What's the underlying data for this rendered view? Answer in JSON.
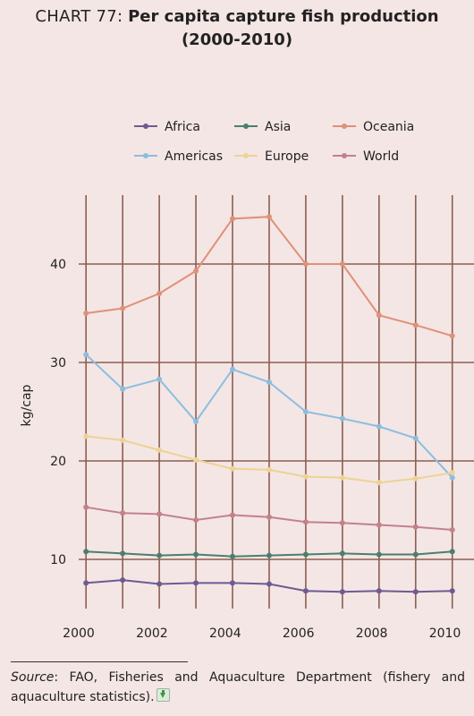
{
  "title_prefix": "CHART 77:",
  "title_main": "Per capita capture fish production",
  "title_line2": "(2000-2010)",
  "footer": {
    "source_label": "Source",
    "source_text": ": FAO, Fisheries and Aquaculture Department (fishery and aquaculture statistics)."
  },
  "colors": {
    "background": "#f4e6e4",
    "grid": "#8b5e52"
  },
  "chart_data": {
    "type": "line",
    "ylabel": "kg/cap",
    "xlim": [
      2000,
      2010.5
    ],
    "ylim": [
      5,
      47
    ],
    "xticks": [
      2000,
      2002,
      2004,
      2006,
      2008,
      2010
    ],
    "yticks": [
      10,
      20,
      30,
      40
    ],
    "grid": true,
    "legend_position": "top",
    "x": [
      2000.2,
      2001.2,
      2002.2,
      2003.2,
      2004.2,
      2005.2,
      2006.2,
      2007.2,
      2008.2,
      2009.2,
      2010.2
    ],
    "series": [
      {
        "name": "Africa",
        "color": "#6e5a93",
        "values": [
          7.6,
          7.9,
          7.5,
          7.6,
          7.6,
          7.5,
          6.8,
          6.7,
          6.8,
          6.7,
          6.8
        ]
      },
      {
        "name": "Asia",
        "color": "#4a7f6e",
        "values": [
          10.8,
          10.6,
          10.4,
          10.5,
          10.3,
          10.4,
          10.5,
          10.6,
          10.5,
          10.5,
          10.8
        ]
      },
      {
        "name": "Oceania",
        "color": "#e0907a",
        "values": [
          35.0,
          35.5,
          37.0,
          39.3,
          44.6,
          44.8,
          40.0,
          40.0,
          34.8,
          33.8,
          32.7
        ]
      },
      {
        "name": "Americas",
        "color": "#8cbde0",
        "values": [
          30.8,
          27.3,
          28.3,
          24.0,
          29.3,
          28.0,
          25.0,
          24.3,
          23.5,
          22.3,
          18.3
        ]
      },
      {
        "name": "Europe",
        "color": "#ecd395",
        "values": [
          22.5,
          22.1,
          21.1,
          20.1,
          19.2,
          19.1,
          18.4,
          18.3,
          17.8,
          18.2,
          18.8
        ]
      },
      {
        "name": "World",
        "color": "#c4808f",
        "values": [
          15.3,
          14.7,
          14.6,
          14.0,
          14.5,
          14.3,
          13.8,
          13.7,
          13.5,
          13.3,
          13.0
        ]
      }
    ]
  }
}
